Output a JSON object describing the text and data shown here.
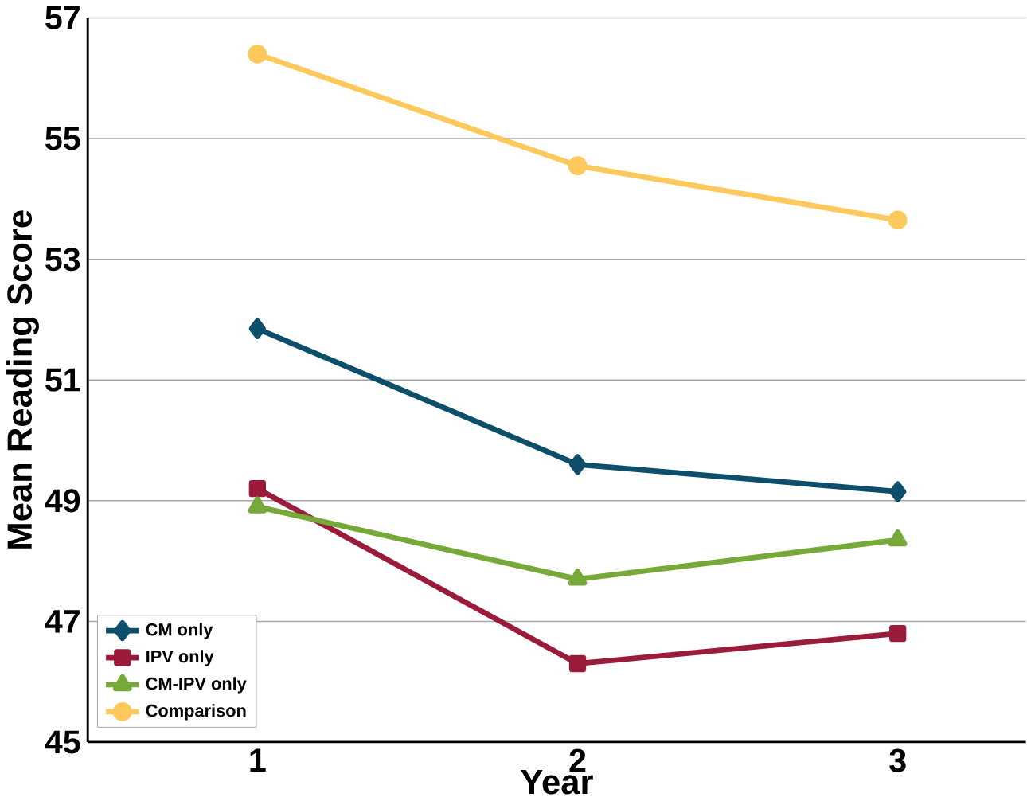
{
  "chart_data": {
    "type": "line",
    "xlabel": "Year",
    "ylabel": "Mean Reading Score",
    "categories": [
      "1",
      "2",
      "3"
    ],
    "series": [
      {
        "name": "CM only",
        "color": "#0d4f6b",
        "marker": "diamond",
        "values": [
          51.85,
          49.6,
          49.15
        ]
      },
      {
        "name": "IPV only",
        "color": "#9b1b3a",
        "marker": "square",
        "values": [
          49.2,
          46.3,
          46.8
        ]
      },
      {
        "name": "CM-IPV only",
        "color": "#77a83a",
        "marker": "triangle",
        "values": [
          48.9,
          47.7,
          48.35
        ]
      },
      {
        "name": "Comparison",
        "color": "#fdc95c",
        "marker": "circle",
        "values": [
          56.4,
          54.55,
          53.65
        ]
      }
    ],
    "ylim": [
      45,
      57
    ],
    "yticks": [
      45,
      47,
      49,
      51,
      53,
      55,
      57
    ],
    "grid": "y",
    "legend": "bottom left"
  }
}
